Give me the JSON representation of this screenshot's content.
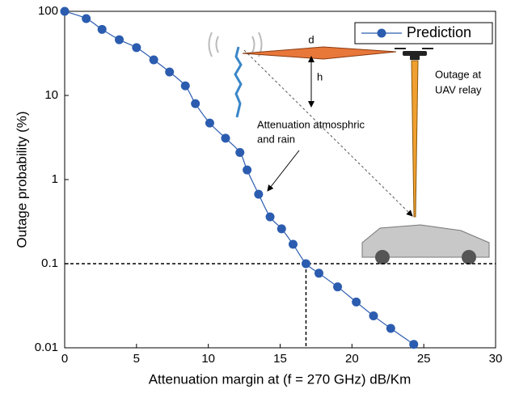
{
  "chart_data": {
    "type": "line",
    "scale": "log",
    "xlabel": "Attenuation margin at (f = 270 GHz) dB/Km",
    "ylabel": "Outage probability (%)",
    "xlim": [
      0,
      30
    ],
    "xticks": [
      0,
      5,
      10,
      15,
      20,
      25,
      30
    ],
    "ylim": [
      0.01,
      100
    ],
    "yticks": [
      0.01,
      0.1,
      1,
      10,
      100
    ],
    "legend": "upper right",
    "x": [
      0,
      1.5,
      2.6,
      3.8,
      5.0,
      6.2,
      7.3,
      8.4,
      9.1,
      10.1,
      11.2,
      12.2,
      12.7,
      13.5,
      14.3,
      15.1,
      15.9,
      16.8,
      17.7,
      19.0,
      20.3,
      21.5,
      22.7,
      24.3
    ],
    "series": [
      {
        "name": "Prediction",
        "color": "#2b5caf",
        "values": [
          100,
          82,
          61,
          46,
          37,
          26.5,
          19,
          13,
          8,
          4.7,
          3.1,
          2.1,
          1.3,
          0.67,
          0.36,
          0.26,
          0.17,
          0.1,
          0.077,
          0.053,
          0.035,
          0.024,
          0.017,
          0.011
        ]
      }
    ],
    "reference": {
      "x": 16.8,
      "y": 0.1
    },
    "annotations": {
      "distance": "d",
      "height": "h",
      "uav": [
        "Outage at",
        "UAV relay"
      ],
      "attenuation": [
        "Attenuation atmosphric",
        "and rain"
      ]
    }
  }
}
